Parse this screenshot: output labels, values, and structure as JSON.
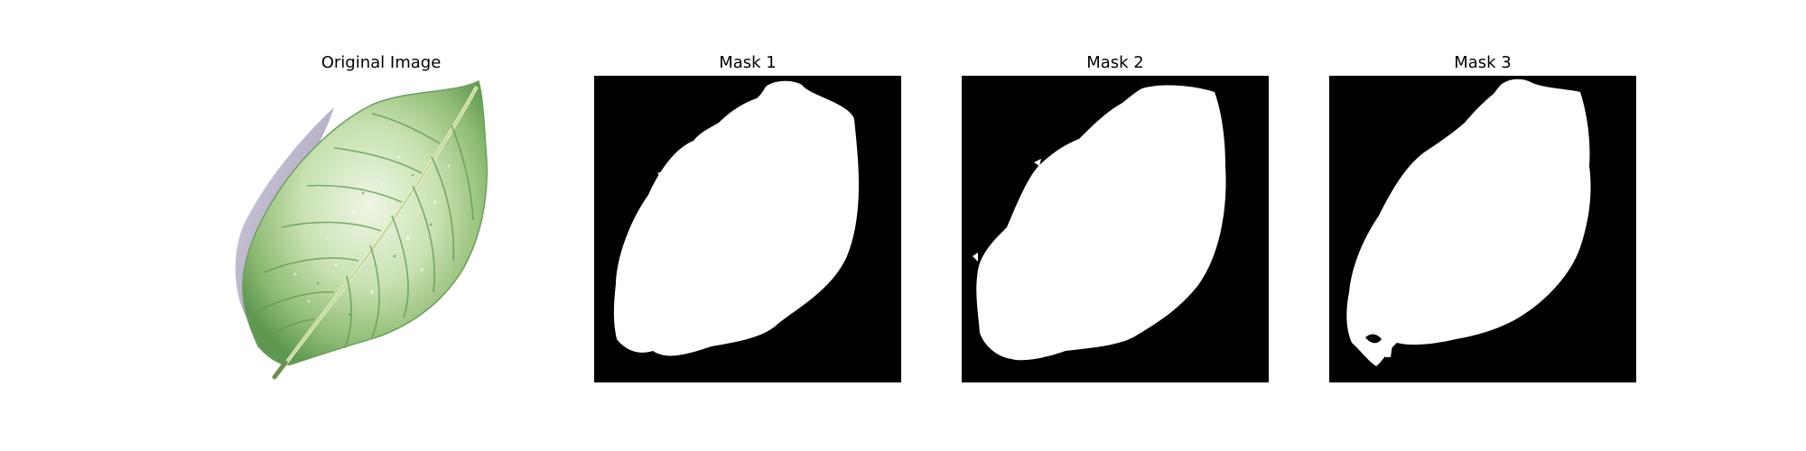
{
  "figure": {
    "panels": [
      {
        "title": "Original Image",
        "kind": "photo",
        "subject": "leaf"
      },
      {
        "title": "Mask 1",
        "kind": "binary-mask"
      },
      {
        "title": "Mask 2",
        "kind": "binary-mask"
      },
      {
        "title": "Mask 3",
        "kind": "binary-mask"
      }
    ]
  },
  "colors": {
    "background": "#ffffff",
    "mask_background": "#000000",
    "mask_foreground": "#ffffff",
    "leaf_light": "#c9e2b2",
    "leaf_mid": "#8dbb72",
    "leaf_dark": "#4e8a45",
    "shadow": "#b7b0c6"
  }
}
